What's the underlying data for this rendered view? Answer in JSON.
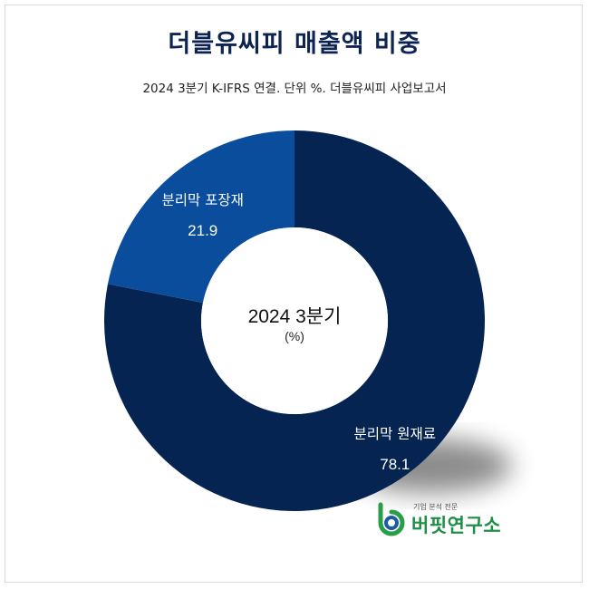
{
  "title": "더블유씨피 매출액 비중",
  "subtitle": "2024 3분기 K-IFRS 연결. 단위 %. 더블유씨피 사업보고서",
  "chart_data": {
    "type": "donut",
    "center_label": "2024 3분기",
    "center_unit": "(%)",
    "slices": [
      {
        "label": "분리막 원재료",
        "value": 78.1,
        "display": "78.1",
        "color": "#062452"
      },
      {
        "label": "분리막 포장재",
        "value": 21.9,
        "display": "21.9",
        "color": "#0a4d9c"
      }
    ]
  },
  "logo": {
    "tagline": "기업 분석 전문",
    "name": "버핏연구소"
  }
}
